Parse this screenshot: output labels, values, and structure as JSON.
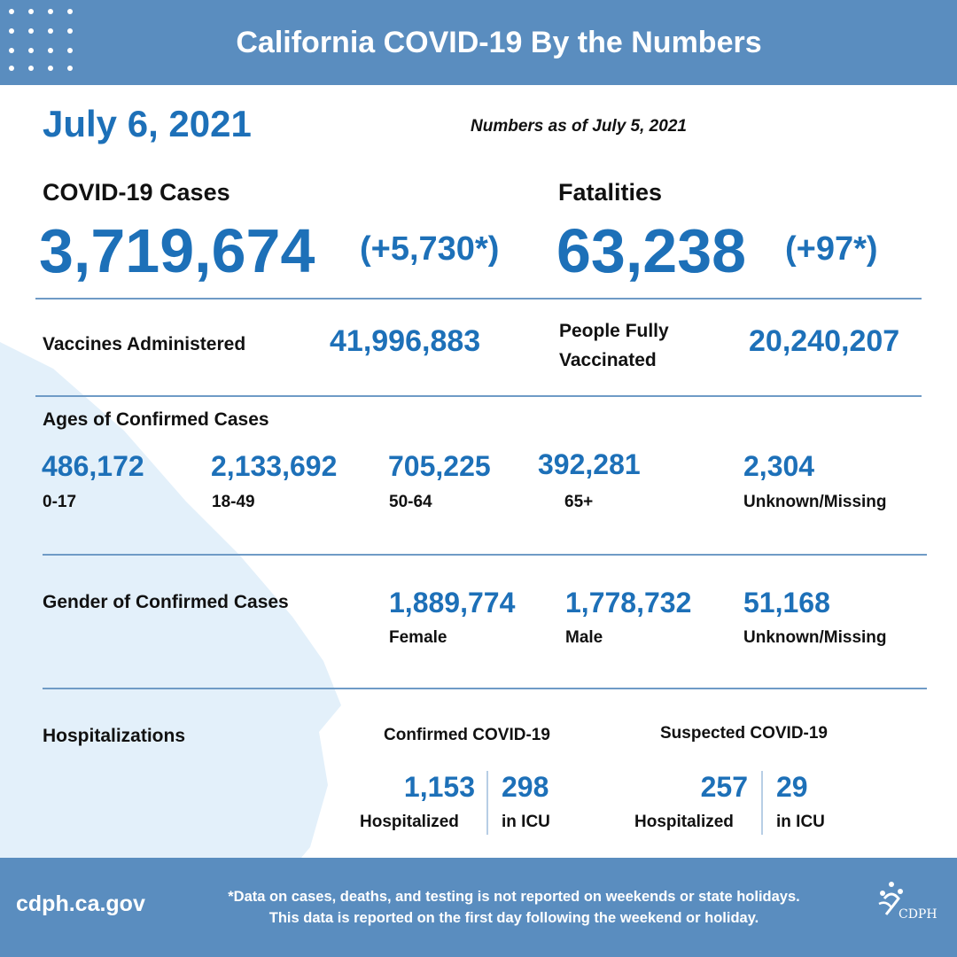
{
  "header": {
    "title": "California COVID-19 By the Numbers"
  },
  "date": "July 6, 2021",
  "as_of": "Numbers as of July 5, 2021",
  "cases": {
    "label": "COVID-19 Cases",
    "value": "3,719,674",
    "change": "(+5,730*)"
  },
  "fatalities": {
    "label": "Fatalities",
    "value": "63,238",
    "change": "(+97*)"
  },
  "vaccines": {
    "label": "Vaccines Administered",
    "value": "41,996,883"
  },
  "fully_vaccinated": {
    "label_line1": "People Fully",
    "label_line2": "Vaccinated",
    "value": "20,240,207"
  },
  "ages": {
    "title": "Ages of Confirmed Cases",
    "items": [
      {
        "value": "486,172",
        "label": "0-17"
      },
      {
        "value": "2,133,692",
        "label": "18-49"
      },
      {
        "value": "705,225",
        "label": "50-64"
      },
      {
        "value": "392,281",
        "label": "65+"
      },
      {
        "value": "2,304",
        "label": "Unknown/Missing"
      }
    ]
  },
  "gender": {
    "title": "Gender of Confirmed Cases",
    "items": [
      {
        "value": "1,889,774",
        "label": "Female"
      },
      {
        "value": "1,778,732",
        "label": "Male"
      },
      {
        "value": "51,168",
        "label": "Unknown/Missing"
      }
    ]
  },
  "hospitalizations": {
    "title": "Hospitalizations",
    "confirmed": {
      "title": "Confirmed COVID-19",
      "hospitalized_value": "1,153",
      "hospitalized_label": "Hospitalized",
      "icu_value": "298",
      "icu_label": "in ICU"
    },
    "suspected": {
      "title": "Suspected COVID-19",
      "hospitalized_value": "257",
      "hospitalized_label": "Hospitalized",
      "icu_value": "29",
      "icu_label": "in ICU"
    }
  },
  "footer": {
    "site": "cdph.ca.gov",
    "note_line1": "*Data on cases, deaths, and testing is not reported on weekends or state holidays.",
    "note_line2": "This data is reported on the first day following the weekend or holiday.",
    "logo_text": "CDPH"
  },
  "colors": {
    "header_bg": "#5a8dbf",
    "accent": "#1d70b8",
    "map": "#e3f0fa",
    "rule": "#6f9bc6"
  }
}
